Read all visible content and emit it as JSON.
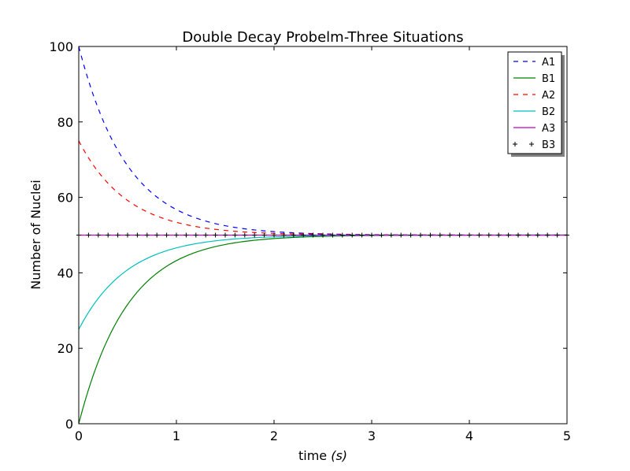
{
  "chart_data": {
    "type": "line",
    "title": "Double Decay Probelm-Three Situations",
    "xlabel_prefix": "time ",
    "xlabel_math": "(s)",
    "ylabel": "Number of Nuclei",
    "xlim": [
      0,
      5
    ],
    "ylim": [
      0,
      100
    ],
    "xticks": [
      0,
      1,
      2,
      3,
      4,
      5
    ],
    "yticks": [
      0,
      20,
      40,
      60,
      80,
      100
    ],
    "grid": false,
    "legend_position": "top-right",
    "series": [
      {
        "name": "A1",
        "color": "#0000ff",
        "style": "dashed",
        "model": "decay",
        "start": 100,
        "end": 50,
        "rate": 2
      },
      {
        "name": "B1",
        "color": "#008000",
        "style": "solid",
        "model": "decay",
        "start": 0,
        "end": 50,
        "rate": 2
      },
      {
        "name": "A2",
        "color": "#ff0000",
        "style": "dashed",
        "model": "decay",
        "start": 75,
        "end": 50,
        "rate": 2
      },
      {
        "name": "B2",
        "color": "#00bfbf",
        "style": "solid",
        "model": "decay",
        "start": 25,
        "end": 50,
        "rate": 2
      },
      {
        "name": "A3",
        "color": "#bf00bf",
        "style": "solid",
        "model": "constant",
        "start": 50,
        "end": 50,
        "rate": 0
      },
      {
        "name": "B3",
        "color": "#000000",
        "style": "plus",
        "model": "constant",
        "start": 50,
        "end": 50,
        "rate": 0
      }
    ]
  }
}
